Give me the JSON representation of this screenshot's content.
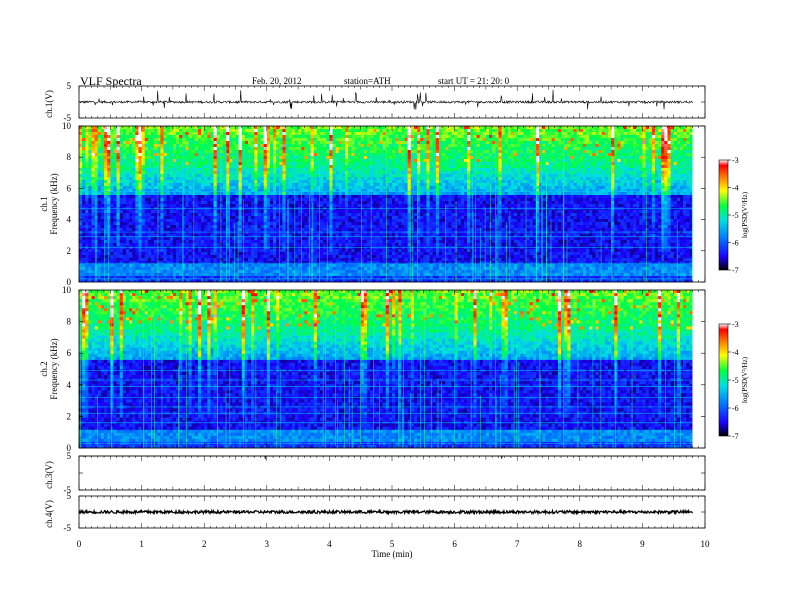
{
  "header": {
    "title": "VLF  Spectra",
    "date": "Feb. 20, 2012",
    "station": "station=ATH",
    "start_time": "start  UT  =   21: 20: 0"
  },
  "chart_data": [
    {
      "type": "line",
      "id": "ch1-waveform",
      "ylabel": "ch.1(V)",
      "ylim": [
        -5,
        5
      ],
      "yticks": [
        "5",
        "-5"
      ],
      "xlim": [
        0,
        10
      ],
      "baseline": 0
    },
    {
      "type": "heatmap",
      "id": "ch1-spectrogram",
      "ylabel": "ch.1\nFrequency  (kHz)",
      "ylim": [
        0,
        10
      ],
      "yticks": [
        "0",
        "2",
        "4",
        "6",
        "8",
        "10"
      ],
      "xlim": [
        0,
        10
      ],
      "data_end_min": 9.8,
      "colorbar": {
        "label": "log(PSD(V²/Hz)",
        "range": [
          -7,
          -3
        ],
        "ticks": [
          "-3",
          "-4",
          "-5",
          "-6",
          "-7"
        ],
        "colors": [
          "#000000",
          "#1a00ff",
          "#0080ff",
          "#00e0e0",
          "#00ff40",
          "#ffff00",
          "#ff8000",
          "#ff0000",
          "#ffffff"
        ]
      }
    },
    {
      "type": "heatmap",
      "id": "ch2-spectrogram",
      "ylabel": "ch.2\nFrequency  (kHz)",
      "ylim": [
        0,
        10
      ],
      "yticks": [
        "0",
        "2",
        "4",
        "6",
        "8",
        "10"
      ],
      "xlim": [
        0,
        10
      ],
      "data_end_min": 9.8,
      "colorbar": {
        "label": "log(PSD(V²/Hz)",
        "range": [
          -7,
          -3
        ],
        "ticks": [
          "-3",
          "-4",
          "-5",
          "-6",
          "-7"
        ],
        "colors": [
          "#000000",
          "#1a00ff",
          "#0080ff",
          "#00e0e0",
          "#00ff40",
          "#ffff00",
          "#ff8000",
          "#ff0000",
          "#ffffff"
        ]
      }
    },
    {
      "type": "line",
      "id": "ch3-waveform",
      "ylabel": "ch.3(V)",
      "ylim": [
        -5,
        5
      ],
      "yticks": [
        "5",
        "-5"
      ],
      "xlim": [
        0,
        10
      ],
      "baseline": 5
    },
    {
      "type": "line",
      "id": "ch4-waveform",
      "ylabel": "ch.4(V)",
      "ylim": [
        -5,
        5
      ],
      "yticks": [
        "5",
        "-5"
      ],
      "xlim": [
        0,
        10
      ],
      "baseline": 0
    }
  ],
  "xaxis": {
    "label": "Time  (min)",
    "ticks": [
      "0",
      "1",
      "2",
      "3",
      "4",
      "5",
      "6",
      "7",
      "8",
      "9",
      "10"
    ]
  }
}
